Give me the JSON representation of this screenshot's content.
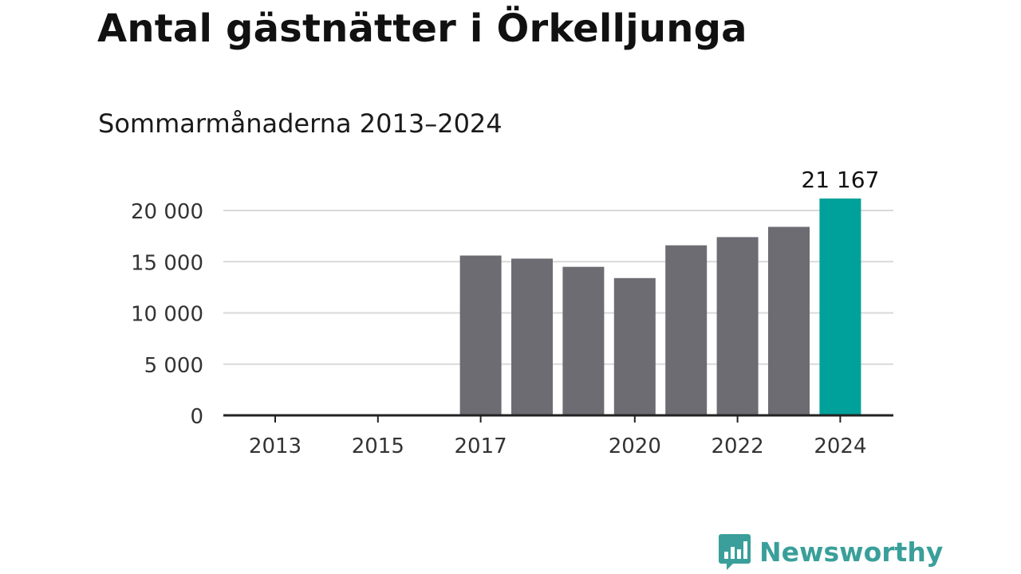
{
  "title": "Antal gästnätter i Örkelljunga",
  "subtitle": "Sommarmånaderna 2013–2024",
  "colors": {
    "bar_default": "#6d6c73",
    "bar_highlight": "#00a19a",
    "gridline": "#d9d9d9",
    "axis": "#222222",
    "tick_label": "#333333",
    "logo": "#3a9f9a"
  },
  "chart_data": {
    "type": "bar",
    "x": [
      2013,
      2014,
      2015,
      2016,
      2017,
      2018,
      2019,
      2020,
      2021,
      2022,
      2023,
      2024
    ],
    "values": [
      null,
      null,
      null,
      null,
      15600,
      15300,
      14500,
      13400,
      16600,
      17400,
      18400,
      21167
    ],
    "highlight_x": 2024,
    "data_labels": [
      {
        "x": 2024,
        "text": "21 167"
      }
    ],
    "x_tick_labels": [
      "2013",
      "2015",
      "2017",
      "2020",
      "2022",
      "2024"
    ],
    "y_ticks": [
      0,
      5000,
      10000,
      15000,
      20000
    ],
    "y_tick_labels": [
      "0",
      "5 000",
      "10 000",
      "15 000",
      "20 000"
    ],
    "ylim": [
      0,
      20000
    ],
    "grid": "horizontal",
    "legend": "none"
  },
  "logo": {
    "name": "Newsworthy",
    "icon": "newsworthy-logo-icon"
  }
}
